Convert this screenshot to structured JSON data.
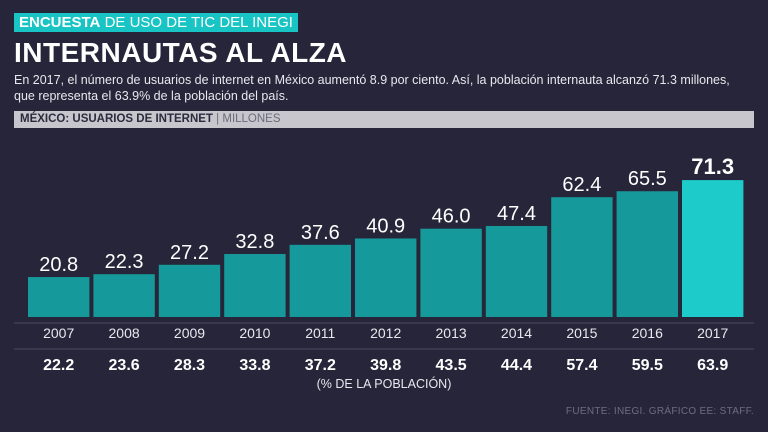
{
  "header": {
    "tag_bold": "ENCUESTA",
    "tag_light": " DE USO DE TIC DEL INEGI",
    "title": "INTERNAUTAS AL ALZA",
    "intro": "En 2017, el número de usuarios de internet en México aumentó 8.9 por ciento. Así, la población internauta alcanzó 71.3 millones, que representa el 63.9% de la población del país.",
    "subtitle_bold": "MÉXICO: USUARIOS DE INTERNET",
    "subtitle_sep": " | ",
    "subtitle_unit": "MILLONES"
  },
  "colors": {
    "bar": "#16999a",
    "bar_highlight": "#1ecbcb",
    "background": "#262539"
  },
  "chart_data": {
    "type": "bar",
    "title": "MÉXICO: USUARIOS DE INTERNET",
    "ylabel": "Millones",
    "categories": [
      "2007",
      "2008",
      "2009",
      "2010",
      "2011",
      "2012",
      "2013",
      "2014",
      "2015",
      "2016",
      "2017"
    ],
    "values": [
      20.8,
      22.3,
      27.2,
      32.8,
      37.6,
      40.9,
      46.0,
      47.4,
      62.4,
      65.5,
      71.3
    ],
    "labels": [
      "20.8",
      "22.3",
      "27.2",
      "32.8",
      "37.6",
      "40.9",
      "46.0",
      "47.4",
      "62.4",
      "65.5",
      "71.3"
    ],
    "highlight_index": 10,
    "percent_of_population": [
      "22.2",
      "23.6",
      "28.3",
      "33.8",
      "37.2",
      "39.8",
      "43.5",
      "44.4",
      "57.4",
      "59.5",
      "63.9"
    ],
    "percent_caption": "(% DE LA POBLACIÓN)",
    "ylim": [
      0,
      80
    ]
  },
  "footer": {
    "source": "FUENTE: INEGI. GRÁFICO EE: STAFF."
  }
}
